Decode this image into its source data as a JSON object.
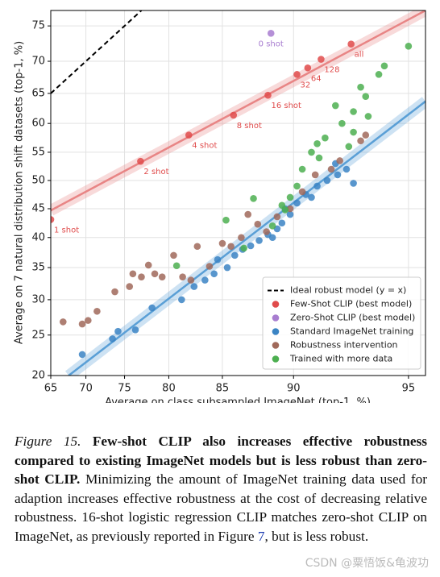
{
  "chart_data": {
    "type": "scatter",
    "xlabel": "Average on class subsampled ImageNet (top-1, %)",
    "ylabel": "Average on 7 natural distribution shift datasets (top-1, %)",
    "xscale": "logit",
    "yscale": "logit",
    "xlim": [
      65,
      95.5
    ],
    "ylim": [
      20,
      77
    ],
    "xticks": [
      65,
      70,
      75,
      80,
      85,
      90,
      95
    ],
    "yticks": [
      20,
      25,
      30,
      35,
      40,
      45,
      50,
      55,
      60,
      65,
      70,
      75
    ],
    "grid": true,
    "legend": "lower right",
    "fit_lines": [
      {
        "color": "#e88585",
        "x": [
          65,
          95.5
        ],
        "values": [
          44.7,
          77
        ]
      },
      {
        "color": "#5a9fd6",
        "x": [
          67.6,
          95.5
        ],
        "values": [
          20,
          63.7
        ]
      }
    ],
    "series": [
      {
        "name": "Ideal robust model (y = x)",
        "type": "line",
        "dashed": true,
        "color": "#000000",
        "x": [
          65,
          69,
          73,
          77
        ],
        "values": [
          65,
          69,
          73,
          77
        ]
      },
      {
        "name": "Few-Shot CLIP (best model)",
        "color": "#e04b4b",
        "x": [
          65,
          76.9,
          82.0,
          85.9,
          88.4,
          90.2,
          90.8,
          91.5,
          92.9
        ],
        "values": [
          43.1,
          53.4,
          58,
          61.4,
          64.7,
          68,
          69,
          70.3,
          72.5
        ],
        "labels": [
          "1 shot",
          "2 shot",
          "4 shot",
          "8 shot",
          "16 shot",
          "32",
          "64",
          "128",
          "all"
        ]
      },
      {
        "name": "Zero-Shot CLIP (best model)",
        "color": "#a87dd0",
        "x": [
          88.6
        ],
        "values": [
          74
        ],
        "labels": [
          "0 shot"
        ]
      },
      {
        "name": "Standard ImageNet training",
        "color": "#3b84c4",
        "x": [
          69.5,
          73.5,
          74.2,
          76.3,
          78.2,
          81.3,
          82.5,
          83.5,
          84.3,
          84.6,
          85.4,
          86,
          86.6,
          87.2,
          87.8,
          88.4,
          88.7,
          89,
          89.3,
          89.8,
          90.2,
          90.7,
          91.3,
          91.8,
          92.3,
          92.7,
          92.2,
          93,
          91,
          89.5
        ],
        "values": [
          22.5,
          24.5,
          25.5,
          25.7,
          28.8,
          30,
          32,
          33,
          34,
          36.3,
          35,
          37,
          38,
          38.6,
          39.5,
          40.5,
          40,
          41.5,
          42.5,
          44,
          46,
          47.5,
          49,
          50,
          51,
          52,
          53,
          49.5,
          47,
          45
        ]
      },
      {
        "name": "Robustness intervention",
        "color": "#a0695a",
        "x": [
          66.8,
          69.5,
          70.3,
          71.5,
          73.8,
          75.6,
          76,
          77,
          77.8,
          78.5,
          79.3,
          80.5,
          81.4,
          82.2,
          82.8,
          83.9,
          85,
          85.7,
          86.5,
          87,
          87.7,
          88.3,
          89,
          89.8,
          90.5,
          91.2,
          92.4,
          93.3,
          93.5,
          92
        ],
        "values": [
          26.8,
          26.5,
          27,
          28.3,
          31.2,
          32,
          34,
          33.5,
          35.4,
          34,
          33.5,
          37,
          33.5,
          33,
          38.5,
          35.2,
          39,
          38.5,
          40,
          44,
          42.3,
          41,
          43.6,
          45,
          48,
          51,
          53.5,
          57,
          58,
          52
        ]
      },
      {
        "name": "Trained with more data",
        "color": "#4caf50",
        "x": [
          80.8,
          85.3,
          87.4,
          88.7,
          89.5,
          89.8,
          90.5,
          91,
          91.3,
          91.7,
          92.5,
          92.2,
          93,
          93.3,
          93.5,
          94,
          94.2,
          93.6,
          93,
          95,
          90.2,
          91.4,
          92.8,
          89.3,
          86.7
        ],
        "values": [
          35.3,
          43,
          46.8,
          42,
          44.8,
          47,
          52,
          55,
          56.5,
          57.5,
          60,
          63,
          62,
          66,
          64.5,
          68,
          69.3,
          61.2,
          58.5,
          72.2,
          49,
          54,
          56,
          45.6,
          38.2
        ]
      }
    ]
  },
  "caption": {
    "label": "Figure 15.",
    "bold": "Few-shot CLIP also increases effective robustness compared to existing ImageNet models but is less robust than zero-shot CLIP.",
    "text": "Minimizing the amount of ImageNet training data used for adaption increases effective robustness at the cost of decreasing relative robustness. 16-shot logistic regression CLIP matches zero-shot CLIP on ImageNet, as previously reported in Figure",
    "link": "7",
    "end": ", but is less robust."
  },
  "watermark": "CSDN @粟悟饭&龟波功"
}
